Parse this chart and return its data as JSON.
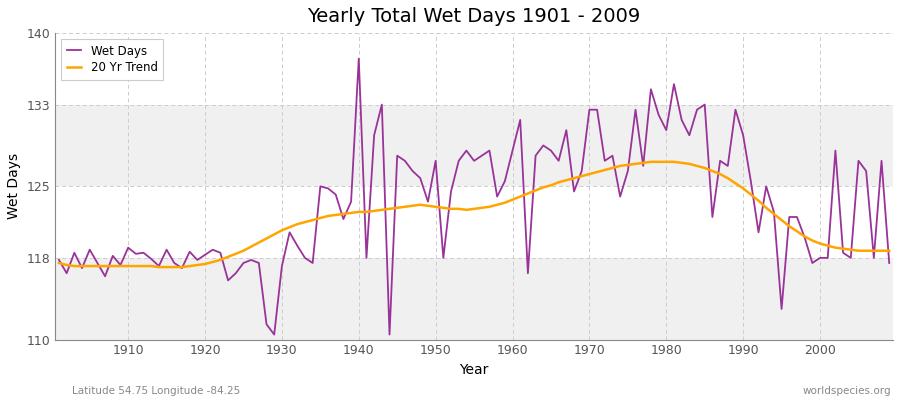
{
  "title": "Yearly Total Wet Days 1901 - 2009",
  "xlabel": "Year",
  "ylabel": "Wet Days",
  "subtitle_left": "Latitude 54.75 Longitude -84.25",
  "subtitle_right": "worldspecies.org",
  "line_color": "#993399",
  "trend_color": "#ffa500",
  "bg_color": "#f0f0f0",
  "band_color1": "#f5f5f5",
  "band_color2": "#e8e8e8",
  "ylim": [
    110,
    140
  ],
  "yticks": [
    110,
    118,
    125,
    133,
    140
  ],
  "xticks": [
    1910,
    1920,
    1930,
    1940,
    1950,
    1960,
    1970,
    1980,
    1990,
    2000
  ],
  "years": [
    1901,
    1902,
    1903,
    1904,
    1905,
    1906,
    1907,
    1908,
    1909,
    1910,
    1911,
    1912,
    1913,
    1914,
    1915,
    1916,
    1917,
    1918,
    1919,
    1920,
    1921,
    1922,
    1923,
    1924,
    1925,
    1926,
    1927,
    1928,
    1929,
    1930,
    1931,
    1932,
    1933,
    1934,
    1935,
    1936,
    1937,
    1938,
    1939,
    1940,
    1941,
    1942,
    1943,
    1944,
    1945,
    1946,
    1947,
    1948,
    1949,
    1950,
    1951,
    1952,
    1953,
    1954,
    1955,
    1956,
    1957,
    1958,
    1959,
    1960,
    1961,
    1962,
    1963,
    1964,
    1965,
    1966,
    1967,
    1968,
    1969,
    1970,
    1971,
    1972,
    1973,
    1974,
    1975,
    1976,
    1977,
    1978,
    1979,
    1980,
    1981,
    1982,
    1983,
    1984,
    1985,
    1986,
    1987,
    1988,
    1989,
    1990,
    1991,
    1992,
    1993,
    1994,
    1995,
    1996,
    1997,
    1998,
    1999,
    2000,
    2001,
    2002,
    2003,
    2004,
    2005,
    2006,
    2007,
    2008,
    2009
  ],
  "wet_days": [
    117.8,
    116.5,
    118.5,
    117.0,
    118.8,
    117.5,
    116.2,
    118.2,
    117.3,
    119.0,
    118.4,
    118.5,
    117.9,
    117.2,
    118.8,
    117.5,
    117.0,
    118.6,
    117.8,
    118.3,
    118.8,
    118.5,
    115.8,
    116.5,
    117.5,
    117.8,
    117.5,
    111.5,
    110.5,
    117.2,
    120.5,
    119.2,
    118.0,
    117.5,
    125.0,
    124.8,
    124.2,
    121.8,
    123.5,
    137.5,
    118.0,
    130.0,
    133.0,
    110.5,
    128.0,
    127.5,
    126.5,
    125.8,
    123.5,
    127.5,
    118.0,
    124.5,
    127.5,
    128.5,
    127.5,
    128.0,
    128.5,
    124.0,
    125.5,
    128.5,
    131.5,
    116.5,
    128.0,
    129.0,
    128.5,
    127.5,
    130.5,
    124.5,
    126.5,
    132.5,
    132.5,
    127.5,
    128.0,
    124.0,
    126.5,
    132.5,
    127.0,
    134.5,
    132.0,
    130.5,
    135.0,
    131.5,
    130.0,
    132.5,
    133.0,
    122.0,
    127.5,
    127.0,
    132.5,
    130.0,
    125.5,
    120.5,
    125.0,
    122.5,
    113.0,
    122.0,
    122.0,
    120.0,
    117.5,
    118.0,
    118.0,
    128.5,
    118.5,
    118.0,
    127.5,
    126.5,
    118.0,
    127.5,
    117.5
  ],
  "trend": [
    117.5,
    117.3,
    117.2,
    117.2,
    117.2,
    117.2,
    117.2,
    117.2,
    117.2,
    117.2,
    117.2,
    117.2,
    117.2,
    117.1,
    117.1,
    117.1,
    117.1,
    117.2,
    117.3,
    117.4,
    117.6,
    117.8,
    118.1,
    118.4,
    118.7,
    119.1,
    119.5,
    119.9,
    120.3,
    120.7,
    121.0,
    121.3,
    121.5,
    121.7,
    121.9,
    122.1,
    122.2,
    122.3,
    122.4,
    122.5,
    122.5,
    122.6,
    122.7,
    122.8,
    122.9,
    123.0,
    123.1,
    123.2,
    123.1,
    123.0,
    122.9,
    122.8,
    122.8,
    122.7,
    122.8,
    122.9,
    123.0,
    123.2,
    123.4,
    123.7,
    124.0,
    124.3,
    124.6,
    124.9,
    125.1,
    125.4,
    125.6,
    125.8,
    126.0,
    126.2,
    126.4,
    126.6,
    126.8,
    127.0,
    127.1,
    127.2,
    127.3,
    127.4,
    127.4,
    127.4,
    127.4,
    127.3,
    127.2,
    127.0,
    126.8,
    126.5,
    126.2,
    125.8,
    125.3,
    124.8,
    124.2,
    123.6,
    122.9,
    122.3,
    121.7,
    121.1,
    120.6,
    120.1,
    119.7,
    119.4,
    119.2,
    119.0,
    118.9,
    118.8,
    118.7,
    118.7,
    118.7,
    118.7,
    118.7
  ]
}
